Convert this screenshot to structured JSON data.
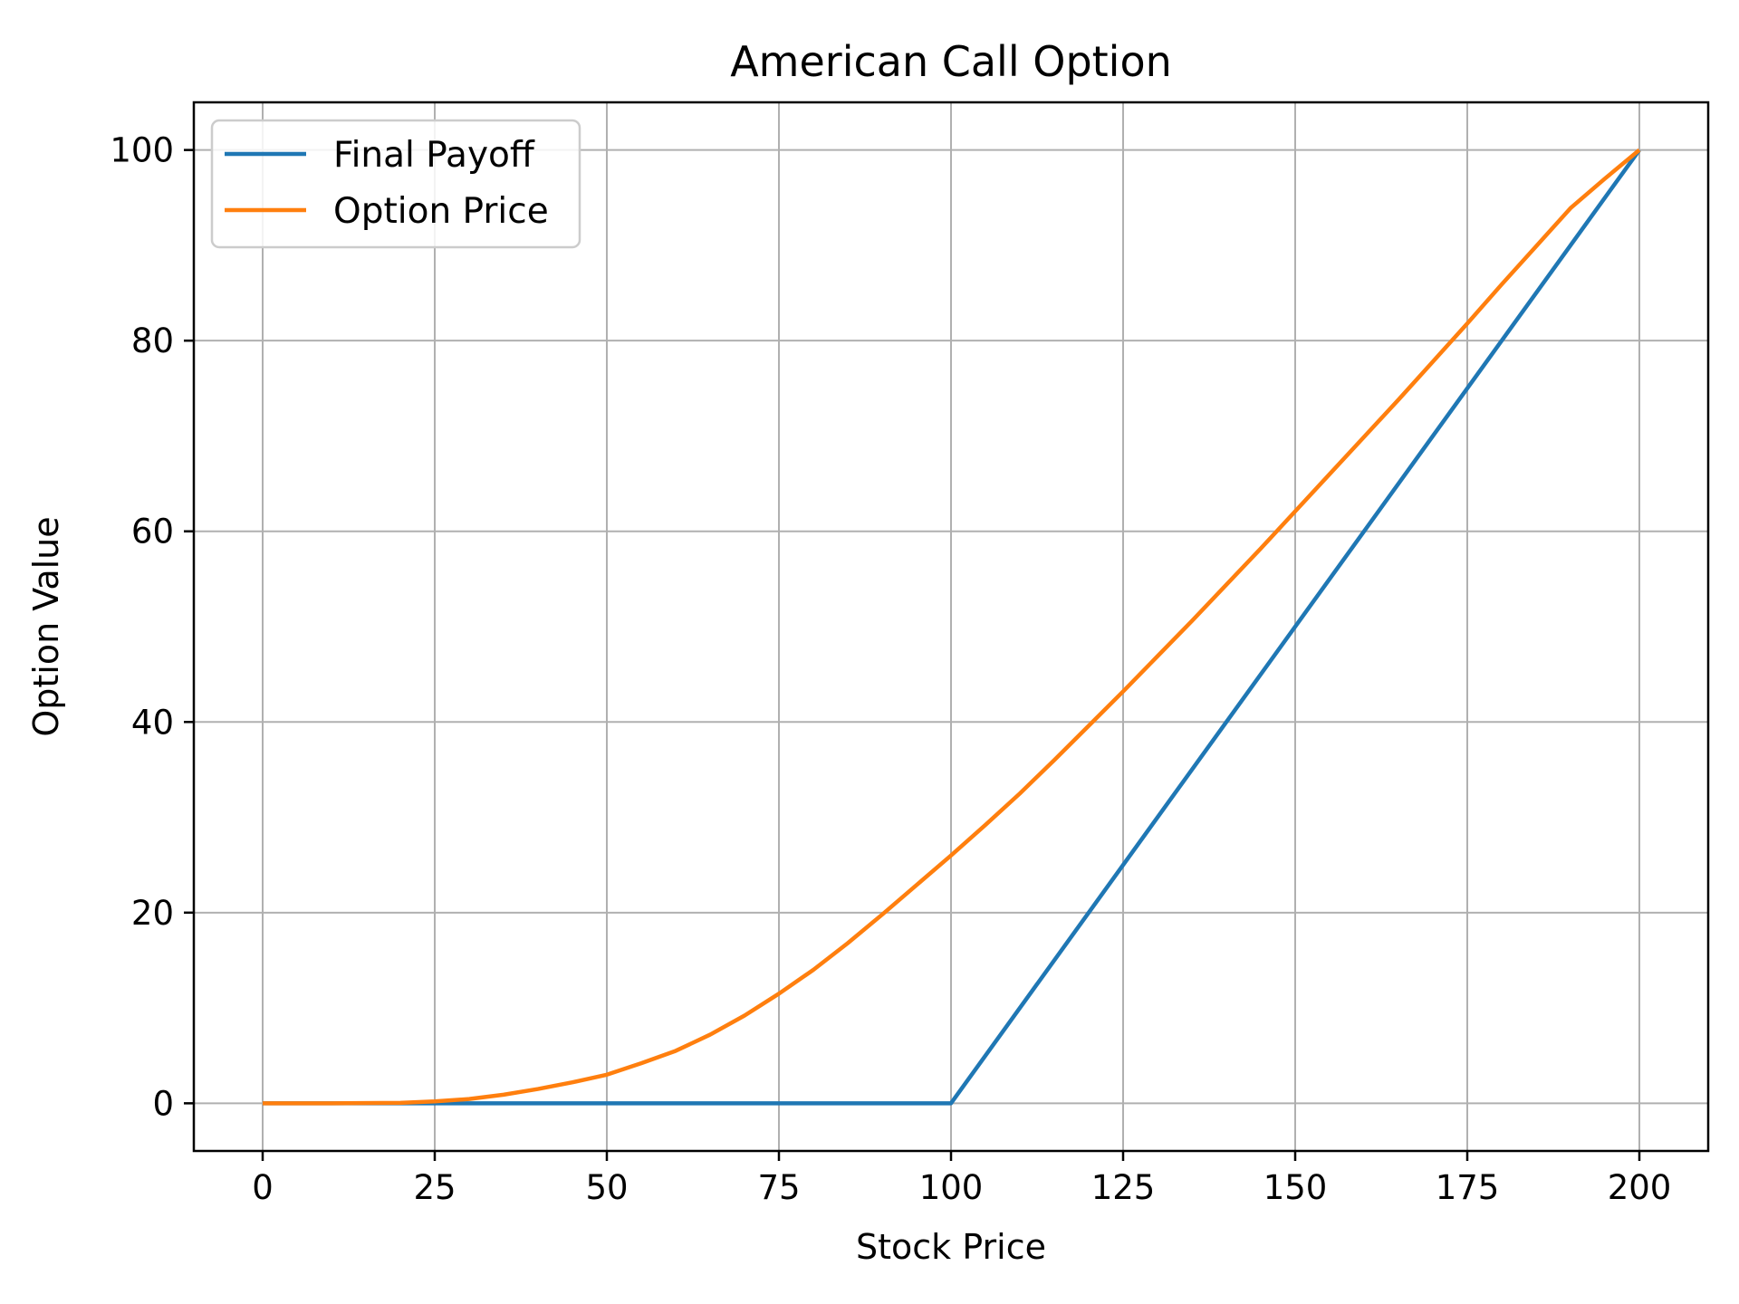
{
  "chart_data": {
    "type": "line",
    "title": "American Call Option",
    "xlabel": "Stock Price",
    "ylabel": "Option Value",
    "xlim": [
      -10,
      210
    ],
    "ylim": [
      -5,
      105
    ],
    "xticks": [
      0,
      25,
      50,
      75,
      100,
      125,
      150,
      175,
      200
    ],
    "yticks": [
      0,
      20,
      40,
      60,
      80,
      100
    ],
    "grid": true,
    "legend_position": "top-left",
    "series": [
      {
        "name": "Final Payoff",
        "color": "#1f77b4",
        "x": [
          0,
          100,
          200
        ],
        "y": [
          0,
          0,
          100
        ]
      },
      {
        "name": "Option Price",
        "color": "#ff7f0e",
        "x": [
          0,
          10,
          20,
          25,
          30,
          35,
          40,
          45,
          50,
          55,
          60,
          65,
          70,
          75,
          80,
          85,
          90,
          95,
          100,
          105,
          110,
          115,
          120,
          125,
          130,
          135,
          140,
          145,
          150,
          155,
          160,
          165,
          170,
          175,
          180,
          185,
          190,
          195,
          200
        ],
        "y": [
          0,
          0,
          0.05,
          0.2,
          0.45,
          0.9,
          1.5,
          2.2,
          3.0,
          4.2,
          5.5,
          7.2,
          9.2,
          11.5,
          14.0,
          16.8,
          19.8,
          22.9,
          26.0,
          29.2,
          32.5,
          36.0,
          39.6,
          43.2,
          46.9,
          50.6,
          54.4,
          58.2,
          62.1,
          66.0,
          69.9,
          73.8,
          77.8,
          81.8,
          85.9,
          89.9,
          93.9,
          97.0,
          100
        ]
      }
    ]
  }
}
